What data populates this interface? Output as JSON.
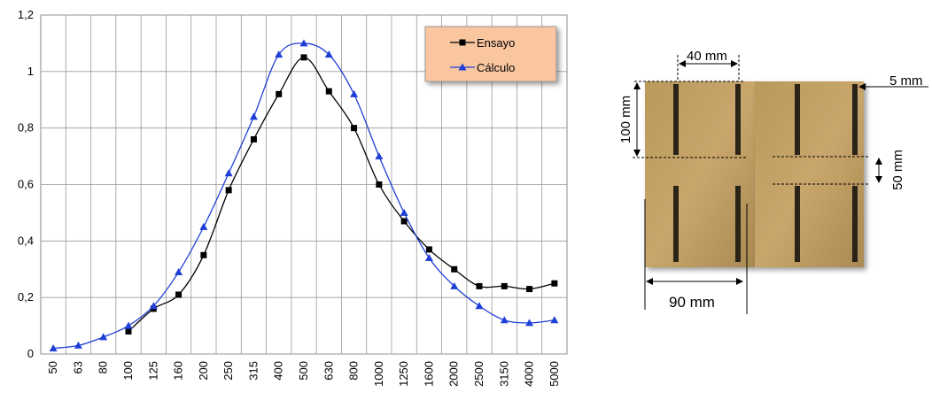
{
  "chart_data": {
    "type": "line",
    "categories": [
      "50",
      "63",
      "80",
      "100",
      "125",
      "160",
      "200",
      "250",
      "315",
      "400",
      "500",
      "630",
      "800",
      "1000",
      "1250",
      "1600",
      "2000",
      "2500",
      "3150",
      "4000",
      "5000"
    ],
    "series": [
      {
        "name": "Ensayo",
        "color": "#000000",
        "marker": "square",
        "values": [
          null,
          null,
          null,
          0.08,
          0.16,
          0.21,
          0.35,
          0.58,
          0.76,
          0.92,
          1.05,
          0.93,
          0.8,
          0.6,
          0.47,
          0.37,
          0.3,
          0.24,
          0.24,
          0.23,
          0.25
        ]
      },
      {
        "name": "Cálculo",
        "color": "#1f3fd6",
        "marker": "triangle",
        "values": [
          0.02,
          0.03,
          0.06,
          0.1,
          0.17,
          0.29,
          0.45,
          0.64,
          0.84,
          1.06,
          1.1,
          1.06,
          0.92,
          0.7,
          0.5,
          0.34,
          0.24,
          0.17,
          0.12,
          0.11,
          0.12
        ]
      }
    ],
    "ylim": [
      0,
      1.2
    ],
    "yticks": [
      0,
      {
        "value": 0.2,
        "label": "0,2"
      },
      {
        "value": 0.4,
        "label": "0,4"
      },
      {
        "value": 0.6,
        "label": "0,6"
      },
      {
        "value": 0.8,
        "label": "0,8"
      },
      1,
      {
        "value": 1.2,
        "label": "1,2"
      }
    ],
    "grid": true,
    "legend": "upper right",
    "smooth": true
  },
  "photo_labels": {
    "width_top": "40 mm",
    "height_left": "100 mm",
    "slot_width": "5 mm",
    "gap": "50 mm",
    "width_bottom": "90 mm"
  }
}
